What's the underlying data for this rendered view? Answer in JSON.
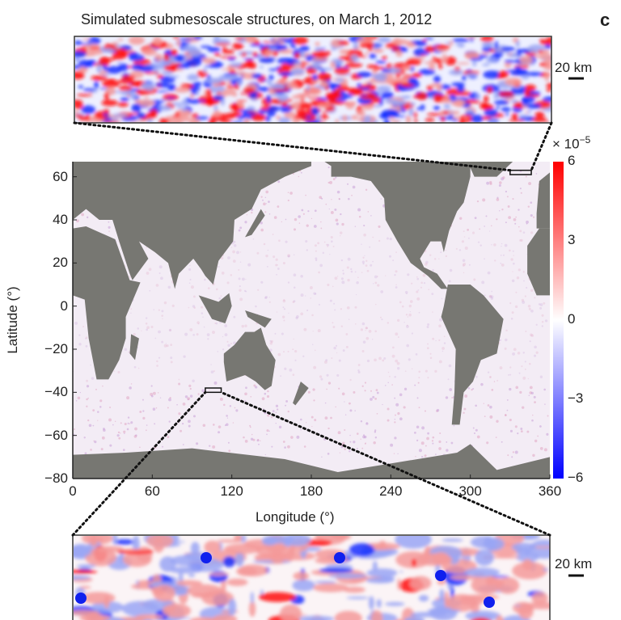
{
  "figure": {
    "title": "Simulated submesoscale structures, on March 1, 2012",
    "panel_label": "c",
    "top_inset_scale": "20 km",
    "bottom_inset_scale": "20 km"
  },
  "chart_data": {
    "type": "heatmap",
    "title": "Simulated submesoscale structures, on March 1, 2012",
    "xlabel": "Longitude (°)",
    "ylabel": "Latitude (°)",
    "xlim": [
      0,
      360
    ],
    "ylim": [
      -80,
      67
    ],
    "xticks": [
      "0",
      "60",
      "120",
      "180",
      "240",
      "300",
      "360"
    ],
    "yticks": [
      "60",
      "40",
      "20",
      "0",
      "−20",
      "−40",
      "−60",
      "−80"
    ],
    "colorbar": {
      "multiplier": "× 10",
      "exponent": "−5",
      "range": [
        -6,
        6
      ],
      "ticks": [
        "6",
        "3",
        "0",
        "−3",
        "−6"
      ],
      "colors": {
        "max": "#ff0000",
        "mid": "#ffffff",
        "min": "#0000ff"
      }
    },
    "land_color": "#777772",
    "zoom_regions": [
      {
        "inset": "top",
        "lon": [
          330,
          346
        ],
        "lat": [
          61,
          63
        ]
      },
      {
        "inset": "bottom",
        "lon": [
          100,
          112
        ],
        "lat": [
          -40,
          -38
        ]
      }
    ]
  }
}
